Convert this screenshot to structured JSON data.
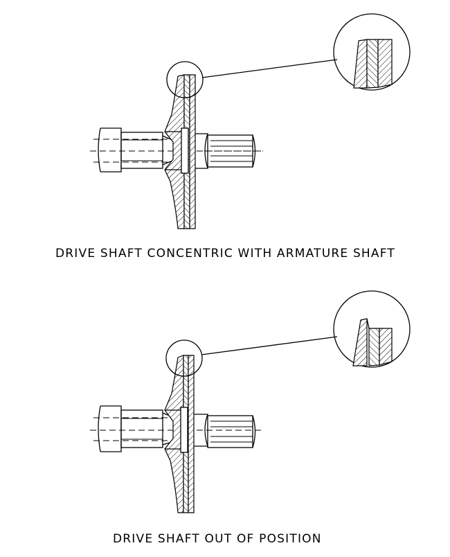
{
  "figures": [
    {
      "caption": "DRIVE SHAFT CONCENTRIC WITH ARMATURE SHAFT"
    },
    {
      "caption": "DRIVE SHAFT OUT OF POSITION"
    }
  ]
}
